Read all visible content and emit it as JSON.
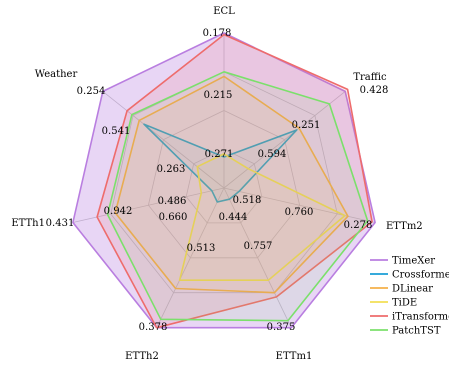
{
  "chart_data": {
    "type": "radar",
    "axes": [
      "ECL",
      "Traffic",
      "ETTm2",
      "ETTm1",
      "ETTh2",
      "ETTh1",
      "Weather"
    ],
    "rings": 4,
    "grid": true,
    "legend": {
      "position": "bottom-right"
    },
    "outer_labels": [
      "0.178",
      "0.428",
      "0.278",
      "0.375",
      "0.378",
      "0.431",
      "0.254"
    ],
    "inner_labels": [
      {
        "text": "0.215",
        "axis": 0,
        "level": 0.72
      },
      {
        "text": "0.251",
        "axis": 0,
        "level": 0.2
      },
      {
        "text": "0.594",
        "axis": 1,
        "level": 0.6
      },
      {
        "text": "0.760",
        "axis": 1,
        "level": 0.22
      },
      {
        "text": "0.518",
        "axis": 2,
        "level": 0.66
      },
      {
        "text": "0.757",
        "axis": 2,
        "level": 0.17
      },
      {
        "text": "0.444",
        "axis": 3,
        "level": 0.66
      },
      {
        "text": "0.513",
        "axis": 3,
        "level": 0.17
      },
      {
        "text": "0.660",
        "axis": 4,
        "level": 0.66
      },
      {
        "text": "0.942",
        "axis": 4,
        "level": 0.2
      },
      {
        "text": "0.486",
        "axis": 5,
        "level": 0.72
      },
      {
        "text": "0.541",
        "axis": 5,
        "level": 0.2
      },
      {
        "text": "0.263",
        "axis": 6,
        "level": 0.66
      },
      {
        "text": "0.271",
        "axis": 6,
        "level": 0.33
      }
    ],
    "series": [
      {
        "name": "TimeXer",
        "color": "#b97ee0",
        "fill": "rgba(185,126,224,0.32)",
        "values": [
          1.0,
          1.0,
          1.0,
          1.0,
          1.0,
          1.0,
          1.0
        ]
      },
      {
        "name": "Crossformer",
        "color": "#1a9ed6",
        "fill": "rgba(26,158,214,0.06)",
        "values": [
          0.2,
          0.6,
          0.1,
          0.08,
          0.1,
          0.08,
          0.66
        ]
      },
      {
        "name": "DLinear",
        "color": "#f5b04a",
        "fill": "rgba(245,176,74,0.10)",
        "values": [
          0.72,
          0.62,
          0.82,
          0.75,
          0.72,
          0.72,
          0.7
        ]
      },
      {
        "name": "TiDE",
        "color": "#f2df54",
        "fill": "rgba(242,223,84,0.06)",
        "values": [
          0.22,
          0.2,
          0.8,
          0.66,
          0.66,
          0.15,
          0.22
        ]
      },
      {
        "name": "iTransformer",
        "color": "#ee6c6c",
        "fill": "rgba(238,108,108,0.14)",
        "values": [
          0.99,
          1.02,
          0.98,
          0.78,
          1.0,
          0.84,
          0.8
        ]
      },
      {
        "name": "PatchTST",
        "color": "#7be06b",
        "fill": "rgba(123,224,107,0.10)",
        "values": [
          0.75,
          0.87,
          0.95,
          0.95,
          0.94,
          0.77,
          0.76
        ]
      }
    ]
  }
}
